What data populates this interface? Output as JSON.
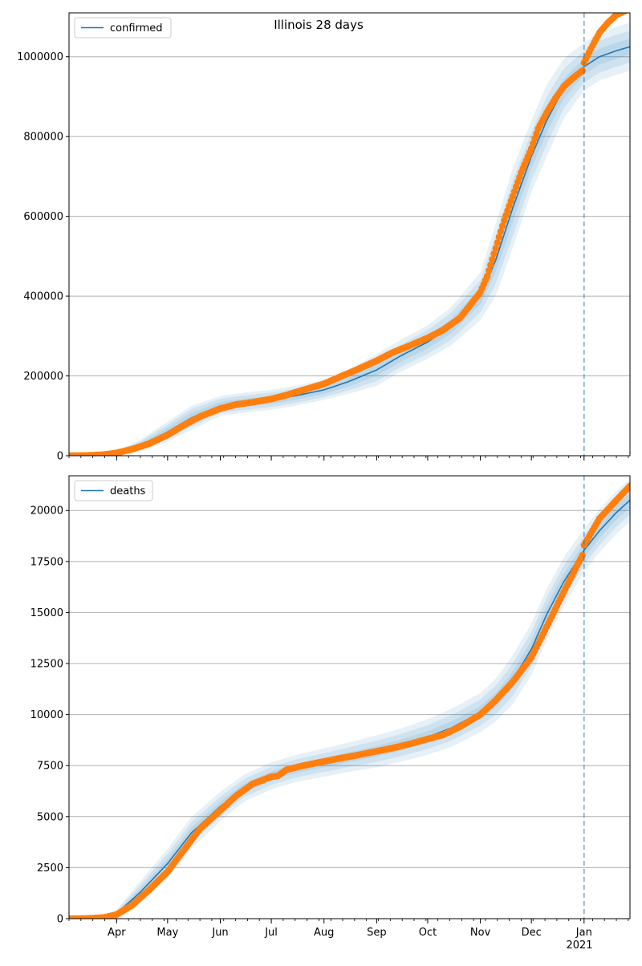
{
  "figure_title": "Illinois 28 days",
  "colors": {
    "model": "#1f77b4",
    "observed": "#ff7f0e",
    "band": "#1f77b4",
    "grid": "#b0b0b0",
    "forecast_line": "#1f77b4"
  },
  "x_axis": {
    "ticks": [
      {
        "date": "2020-04-01",
        "label": "Apr"
      },
      {
        "date": "2020-05-01",
        "label": "May"
      },
      {
        "date": "2020-06-01",
        "label": "Jun"
      },
      {
        "date": "2020-07-01",
        "label": "Jul"
      },
      {
        "date": "2020-08-01",
        "label": "Aug"
      },
      {
        "date": "2020-09-01",
        "label": "Sep"
      },
      {
        "date": "2020-10-01",
        "label": "Oct"
      },
      {
        "date": "2020-11-01",
        "label": "Nov"
      },
      {
        "date": "2020-12-01",
        "label": "Dec"
      },
      {
        "date": "2021-01-01",
        "label": "Jan"
      }
    ],
    "year_label": "2021",
    "range": [
      "2020-03-04",
      "2021-01-28"
    ],
    "forecast_start": "2021-01-01"
  },
  "chart_data": [
    {
      "type": "line",
      "legend": "confirmed",
      "legend_position": "top-left",
      "grid": true,
      "ylim": [
        0,
        1110000
      ],
      "yticks": [
        0,
        200000,
        400000,
        600000,
        800000,
        1000000
      ],
      "ytick_labels": [
        "0",
        "200000",
        "400000",
        "600000",
        "800000",
        "1000000"
      ],
      "model": {
        "name": "confirmed",
        "x": [
          "2020-03-04",
          "2020-03-20",
          "2020-04-01",
          "2020-04-15",
          "2020-05-01",
          "2020-05-15",
          "2020-06-01",
          "2020-06-15",
          "2020-07-01",
          "2020-07-15",
          "2020-08-01",
          "2020-08-15",
          "2020-09-01",
          "2020-09-15",
          "2020-10-01",
          "2020-10-15",
          "2020-11-01",
          "2020-11-10",
          "2020-11-20",
          "2020-12-01",
          "2020-12-10",
          "2020-12-20",
          "2021-01-01",
          "2021-01-10",
          "2021-01-20",
          "2021-01-28"
        ],
        "y": [
          0,
          2000,
          7000,
          25000,
          60000,
          95000,
          125000,
          133000,
          140000,
          150000,
          165000,
          185000,
          215000,
          250000,
          285000,
          325000,
          400000,
          490000,
          620000,
          750000,
          840000,
          920000,
          975000,
          1000000,
          1015000,
          1025000
        ],
        "band_half_widths": [
          [
            0,
            500,
            2000,
            6000,
            10000,
            12000,
            10000,
            10000,
            10000,
            10000,
            10000,
            12000,
            15000,
            15000,
            16000,
            18000,
            20000,
            30000,
            35000,
            30000,
            30000,
            25000,
            20000,
            20000,
            20000,
            20000
          ],
          [
            0,
            800,
            3500,
            11000,
            18000,
            22000,
            18000,
            18000,
            18000,
            18000,
            18000,
            22000,
            28000,
            28000,
            30000,
            34000,
            40000,
            60000,
            70000,
            60000,
            60000,
            50000,
            40000,
            40000,
            40000,
            40000
          ],
          [
            0,
            1000,
            5000,
            15000,
            25000,
            30000,
            25000,
            25000,
            25000,
            25000,
            25000,
            30000,
            40000,
            40000,
            42000,
            48000,
            60000,
            90000,
            100000,
            90000,
            90000,
            75000,
            60000,
            60000,
            60000,
            60000
          ]
        ]
      },
      "observed": {
        "x": [
          "2020-03-04",
          "2020-03-15",
          "2020-03-25",
          "2020-04-01",
          "2020-04-10",
          "2020-04-20",
          "2020-05-01",
          "2020-05-10",
          "2020-05-20",
          "2020-06-01",
          "2020-06-10",
          "2020-06-20",
          "2020-07-01",
          "2020-07-10",
          "2020-07-20",
          "2020-08-01",
          "2020-08-10",
          "2020-08-20",
          "2020-09-01",
          "2020-09-10",
          "2020-09-20",
          "2020-10-01",
          "2020-10-10",
          "2020-10-20",
          "2020-11-01",
          "2020-11-05",
          "2020-11-10",
          "2020-11-15",
          "2020-11-20",
          "2020-11-25",
          "2020-12-01",
          "2020-12-05",
          "2020-12-10",
          "2020-12-15",
          "2020-12-20",
          "2020-12-25",
          "2020-12-31",
          "2021-01-01",
          "2021-01-05",
          "2021-01-10",
          "2021-01-15",
          "2021-01-20",
          "2021-01-28"
        ],
        "y": [
          0,
          500,
          3000,
          7000,
          16000,
          30000,
          52000,
          75000,
          98000,
          118000,
          128000,
          134000,
          142000,
          152000,
          165000,
          180000,
          197000,
          215000,
          238000,
          258000,
          275000,
          295000,
          315000,
          345000,
          410000,
          450000,
          520000,
          590000,
          650000,
          710000,
          770000,
          820000,
          860000,
          895000,
          925000,
          945000,
          965000,
          985000,
          1020000,
          1060000,
          1085000,
          1105000,
          1120000
        ]
      }
    },
    {
      "type": "line",
      "legend": "deaths",
      "legend_position": "top-left",
      "grid": true,
      "ylim": [
        0,
        21700
      ],
      "yticks": [
        0,
        2500,
        5000,
        7500,
        10000,
        12500,
        15000,
        17500,
        20000
      ],
      "ytick_labels": [
        "0",
        "2500",
        "5000",
        "7500",
        "10000",
        "12500",
        "15000",
        "17500",
        "20000"
      ],
      "model": {
        "name": "deaths",
        "x": [
          "2020-03-04",
          "2020-03-20",
          "2020-04-01",
          "2020-04-15",
          "2020-05-01",
          "2020-05-15",
          "2020-06-01",
          "2020-06-15",
          "2020-07-01",
          "2020-07-15",
          "2020-08-01",
          "2020-08-15",
          "2020-09-01",
          "2020-09-15",
          "2020-10-01",
          "2020-10-15",
          "2020-11-01",
          "2020-11-10",
          "2020-11-20",
          "2020-12-01",
          "2020-12-10",
          "2020-12-20",
          "2021-01-01",
          "2021-01-10",
          "2021-01-20",
          "2021-01-28"
        ],
        "y": [
          0,
          20,
          250,
          1300,
          2700,
          4200,
          5500,
          6400,
          7000,
          7350,
          7650,
          7900,
          8200,
          8500,
          8900,
          9350,
          10100,
          10700,
          11700,
          13200,
          14900,
          16500,
          18050,
          19000,
          19900,
          20500
        ],
        "band_half_widths": [
          [
            0,
            10,
            60,
            180,
            240,
            260,
            240,
            220,
            220,
            220,
            230,
            240,
            260,
            270,
            290,
            310,
            320,
            350,
            400,
            420,
            420,
            400,
            350,
            350,
            350,
            350
          ],
          [
            0,
            20,
            120,
            360,
            480,
            520,
            480,
            440,
            440,
            440,
            460,
            480,
            520,
            540,
            580,
            620,
            640,
            700,
            800,
            840,
            840,
            800,
            700,
            700,
            700,
            700
          ],
          [
            0,
            30,
            180,
            540,
            720,
            780,
            720,
            660,
            660,
            660,
            690,
            720,
            780,
            810,
            870,
            930,
            960,
            1050,
            1200,
            1260,
            1260,
            1200,
            1050,
            1050,
            1050,
            1050
          ]
        ]
      },
      "observed": {
        "x": [
          "2020-03-04",
          "2020-03-15",
          "2020-03-25",
          "2020-04-01",
          "2020-04-10",
          "2020-04-20",
          "2020-05-01",
          "2020-05-10",
          "2020-05-20",
          "2020-06-01",
          "2020-06-10",
          "2020-06-20",
          "2020-07-01",
          "2020-07-05",
          "2020-07-10",
          "2020-07-20",
          "2020-08-01",
          "2020-08-10",
          "2020-08-20",
          "2020-09-01",
          "2020-09-10",
          "2020-09-20",
          "2020-10-01",
          "2020-10-10",
          "2020-10-20",
          "2020-11-01",
          "2020-11-10",
          "2020-11-20",
          "2020-12-01",
          "2020-12-10",
          "2020-12-20",
          "2020-12-31",
          "2021-01-01",
          "2021-01-10",
          "2021-01-20",
          "2021-01-28"
        ],
        "y": [
          0,
          10,
          60,
          200,
          650,
          1400,
          2300,
          3300,
          4400,
          5300,
          6000,
          6600,
          6950,
          7000,
          7300,
          7500,
          7700,
          7850,
          8000,
          8200,
          8350,
          8550,
          8800,
          9000,
          9400,
          10000,
          10700,
          11600,
          12800,
          14300,
          16000,
          17800,
          18300,
          19600,
          20500,
          21200
        ]
      }
    }
  ]
}
